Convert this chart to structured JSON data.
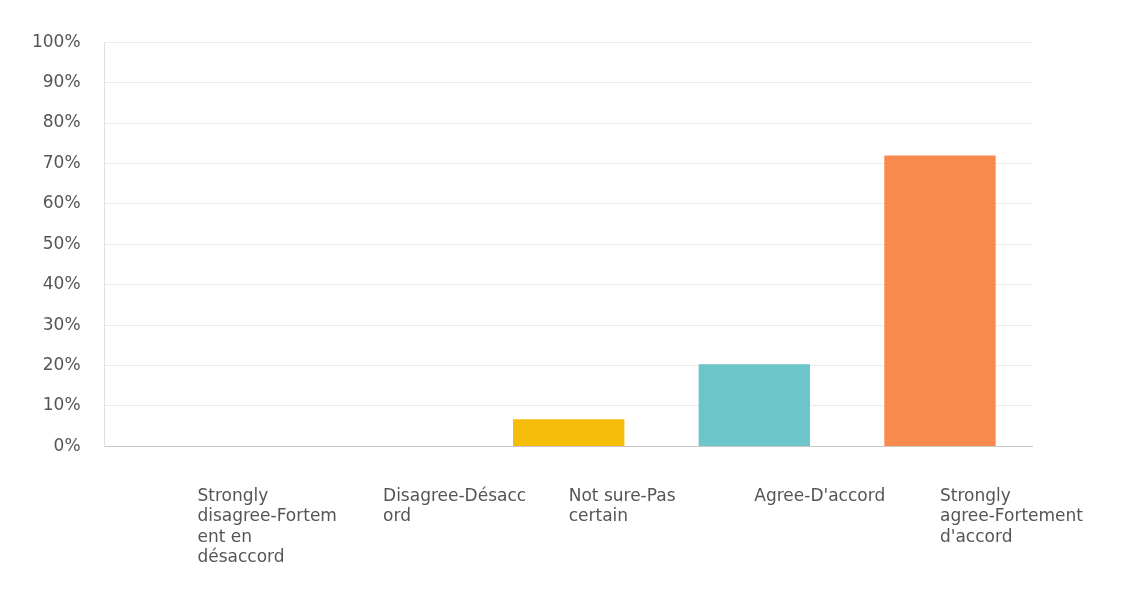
{
  "chart_data": {
    "type": "bar",
    "categories": [
      "Strongly disagree-Fortement en désaccord",
      "Disagree-Désaccord",
      "Not sure-Pas certain",
      "Agree-D'accord",
      "Strongly agree-Fortement d'accord"
    ],
    "values": [
      0,
      0,
      6.7,
      20.3,
      72
    ],
    "colors": [
      null,
      null,
      "#f5bd0a",
      "#6cc5c8",
      "#f98a4e"
    ],
    "ylim": [
      0,
      100
    ],
    "yticks": [
      {
        "value": 0,
        "label": "0%"
      },
      {
        "value": 10,
        "label": "10%"
      },
      {
        "value": 20,
        "label": "20%"
      },
      {
        "value": 30,
        "label": "30%"
      },
      {
        "value": 40,
        "label": "40%"
      },
      {
        "value": 50,
        "label": "50%"
      },
      {
        "value": 60,
        "label": "60%"
      },
      {
        "value": 70,
        "label": "70%"
      },
      {
        "value": 80,
        "label": "80%"
      },
      {
        "value": 90,
        "label": "90%"
      },
      {
        "value": 100,
        "label": "100%"
      }
    ],
    "grid": "y",
    "legend": false
  }
}
